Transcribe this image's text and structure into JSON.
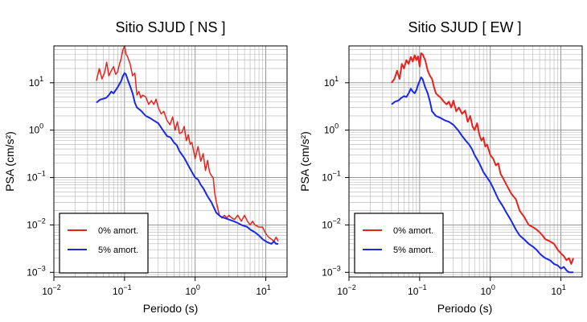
{
  "chart_data": [
    {
      "type": "line",
      "title": "Sitio SJUD [ NS ]",
      "xlabel": "Periodo (s)",
      "ylabel": "PSA (cm/s²)",
      "xscale": "log",
      "yscale": "log",
      "xlim": [
        0.01,
        20
      ],
      "ylim": [
        0.0008,
        60
      ],
      "grid": true,
      "legend_position": "bottom-left",
      "x_ticks": [
        {
          "base": "10",
          "exp": "−2",
          "value": 0.01
        },
        {
          "base": "10",
          "exp": "−1",
          "value": 0.1
        },
        {
          "base": "10",
          "exp": "0",
          "value": 1
        },
        {
          "base": "10",
          "exp": "1",
          "value": 10
        }
      ],
      "y_ticks": [
        {
          "base": "10",
          "exp": "−3",
          "value": 0.001
        },
        {
          "base": "10",
          "exp": "−2",
          "value": 0.01
        },
        {
          "base": "10",
          "exp": "−1",
          "value": 0.1
        },
        {
          "base": "10",
          "exp": "0",
          "value": 1
        },
        {
          "base": "10",
          "exp": "1",
          "value": 10
        }
      ],
      "series": [
        {
          "name": "0% amort.",
          "color": "#e8231f",
          "width": 1.5,
          "x": [
            0.04,
            0.044,
            0.048,
            0.052,
            0.056,
            0.06,
            0.065,
            0.07,
            0.075,
            0.08,
            0.085,
            0.09,
            0.095,
            0.1,
            0.105,
            0.11,
            0.12,
            0.13,
            0.14,
            0.15,
            0.16,
            0.17,
            0.18,
            0.2,
            0.22,
            0.24,
            0.26,
            0.28,
            0.3,
            0.33,
            0.36,
            0.4,
            0.44,
            0.48,
            0.52,
            0.56,
            0.6,
            0.65,
            0.7,
            0.75,
            0.8,
            0.85,
            0.9,
            1.0,
            1.1,
            1.2,
            1.3,
            1.4,
            1.5,
            1.6,
            1.7,
            1.8,
            1.9,
            2.0,
            2.2,
            2.4,
            2.6,
            2.8,
            3.0,
            3.3,
            3.6,
            4.0,
            4.5,
            5.0,
            5.5,
            6.0,
            6.5,
            7.0,
            8.0,
            9.0,
            10,
            11,
            12,
            13,
            14,
            15
          ],
          "y": [
            11,
            20,
            12,
            16,
            27,
            14,
            18,
            22,
            15,
            17,
            25,
            33,
            50,
            60,
            40,
            36,
            25,
            14,
            16,
            5.5,
            6.5,
            4.8,
            5.5,
            5.0,
            3.5,
            4.2,
            3.5,
            4.5,
            3.0,
            2.2,
            2.5,
            1.6,
            1.3,
            1.9,
            1.0,
            1.5,
            0.85,
            0.9,
            1.2,
            0.6,
            0.8,
            0.5,
            0.55,
            0.25,
            0.45,
            0.22,
            0.32,
            0.14,
            0.23,
            0.13,
            0.11,
            0.1,
            0.045,
            0.03,
            0.016,
            0.014,
            0.016,
            0.014,
            0.016,
            0.014,
            0.013,
            0.016,
            0.012,
            0.016,
            0.012,
            0.01,
            0.012,
            0.01,
            0.009,
            0.009,
            0.0065,
            0.0055,
            0.005,
            0.0045,
            0.0055,
            0.0045
          ]
        },
        {
          "name": "5% amort.",
          "color": "#1a28e8",
          "width": 2,
          "x": [
            0.04,
            0.045,
            0.05,
            0.055,
            0.06,
            0.065,
            0.07,
            0.075,
            0.08,
            0.085,
            0.09,
            0.095,
            0.1,
            0.105,
            0.11,
            0.12,
            0.13,
            0.14,
            0.15,
            0.17,
            0.2,
            0.23,
            0.26,
            0.3,
            0.35,
            0.4,
            0.45,
            0.5,
            0.55,
            0.6,
            0.7,
            0.8,
            0.9,
            1.0,
            1.1,
            1.2,
            1.3,
            1.5,
            1.7,
            2.0,
            2.3,
            2.6,
            3.0,
            3.5,
            4.0,
            4.5,
            5.0,
            5.5,
            6.0,
            7.0,
            8.0,
            9.0,
            10,
            11,
            12,
            13,
            14,
            15
          ],
          "y": [
            3.8,
            4.4,
            4.6,
            4.8,
            5.5,
            6.5,
            6.0,
            7.0,
            8.0,
            9.5,
            11,
            14,
            16,
            15,
            12,
            8.5,
            6.0,
            3.8,
            3.0,
            2.6,
            2.0,
            1.8,
            1.6,
            1.4,
            1.0,
            0.75,
            0.7,
            0.55,
            0.48,
            0.36,
            0.26,
            0.18,
            0.13,
            0.1,
            0.09,
            0.07,
            0.06,
            0.04,
            0.03,
            0.018,
            0.015,
            0.014,
            0.013,
            0.012,
            0.011,
            0.01,
            0.0095,
            0.009,
            0.008,
            0.007,
            0.006,
            0.005,
            0.0045,
            0.0042,
            0.004,
            0.0045,
            0.004,
            0.004
          ]
        }
      ]
    },
    {
      "type": "line",
      "title": "Sitio SJUD [ EW ]",
      "xlabel": "Periodo (s)",
      "ylabel": "PSA (cm/s²)",
      "xscale": "log",
      "yscale": "log",
      "xlim": [
        0.01,
        20
      ],
      "ylim": [
        0.0008,
        60
      ],
      "grid": true,
      "legend_position": "bottom-left",
      "x_ticks": [
        {
          "base": "10",
          "exp": "−2",
          "value": 0.01
        },
        {
          "base": "10",
          "exp": "−1",
          "value": 0.1
        },
        {
          "base": "10",
          "exp": "0",
          "value": 1
        },
        {
          "base": "10",
          "exp": "1",
          "value": 10
        }
      ],
      "y_ticks": [
        {
          "base": "10",
          "exp": "−3",
          "value": 0.001
        },
        {
          "base": "10",
          "exp": "−2",
          "value": 0.01
        },
        {
          "base": "10",
          "exp": "−1",
          "value": 0.1
        },
        {
          "base": "10",
          "exp": "0",
          "value": 1
        },
        {
          "base": "10",
          "exp": "1",
          "value": 10
        }
      ],
      "series": [
        {
          "name": "0% amort.",
          "color": "#e8231f",
          "width": 2,
          "x": [
            0.04,
            0.044,
            0.048,
            0.052,
            0.056,
            0.06,
            0.065,
            0.07,
            0.075,
            0.08,
            0.085,
            0.09,
            0.095,
            0.1,
            0.105,
            0.11,
            0.12,
            0.13,
            0.14,
            0.15,
            0.16,
            0.17,
            0.18,
            0.2,
            0.22,
            0.24,
            0.26,
            0.28,
            0.3,
            0.33,
            0.36,
            0.4,
            0.44,
            0.48,
            0.52,
            0.56,
            0.6,
            0.65,
            0.7,
            0.75,
            0.8,
            0.85,
            0.9,
            1.0,
            1.1,
            1.2,
            1.3,
            1.4,
            1.5,
            1.7,
            2.0,
            2.3,
            2.6,
            3.0,
            3.5,
            4.0,
            4.5,
            5.0,
            5.5,
            6.0,
            7.0,
            8.0,
            9.0,
            10,
            11,
            12,
            13,
            14,
            15
          ],
          "y": [
            10,
            12,
            18,
            12,
            25,
            20,
            30,
            25,
            35,
            28,
            38,
            30,
            36,
            22,
            42,
            40,
            30,
            18,
            14,
            12,
            8,
            6,
            5.5,
            4.8,
            4.0,
            3.5,
            4.0,
            3.0,
            4.2,
            2.5,
            3.0,
            2.2,
            2.6,
            1.5,
            2.0,
            1.2,
            1.0,
            1.4,
            0.8,
            0.6,
            0.7,
            0.45,
            0.5,
            0.3,
            0.25,
            0.18,
            0.2,
            0.12,
            0.1,
            0.07,
            0.045,
            0.035,
            0.02,
            0.015,
            0.01,
            0.009,
            0.008,
            0.007,
            0.006,
            0.005,
            0.0045,
            0.004,
            0.003,
            0.0025,
            0.0022,
            0.0018,
            0.002,
            0.0015,
            0.002
          ]
        },
        {
          "name": "5% amort.",
          "color": "#1a28e8",
          "width": 2,
          "x": [
            0.04,
            0.045,
            0.05,
            0.055,
            0.06,
            0.065,
            0.07,
            0.075,
            0.08,
            0.085,
            0.09,
            0.095,
            0.1,
            0.105,
            0.11,
            0.12,
            0.13,
            0.14,
            0.15,
            0.17,
            0.2,
            0.23,
            0.26,
            0.3,
            0.35,
            0.4,
            0.45,
            0.5,
            0.55,
            0.6,
            0.7,
            0.8,
            0.9,
            1.0,
            1.1,
            1.2,
            1.3,
            1.5,
            1.7,
            2.0,
            2.3,
            2.6,
            3.0,
            3.5,
            4.0,
            4.5,
            5.0,
            5.5,
            6.0,
            7.0,
            8.0,
            9.0,
            10,
            11,
            12,
            13,
            14,
            15
          ],
          "y": [
            3.5,
            4.0,
            4.2,
            4.8,
            5.2,
            5.0,
            6.0,
            7.5,
            6.5,
            6.0,
            7.0,
            9.0,
            11,
            13,
            12,
            8.0,
            6.0,
            4.0,
            2.5,
            2.0,
            1.8,
            1.6,
            1.5,
            1.3,
            1.0,
            0.75,
            0.6,
            0.5,
            0.4,
            0.3,
            0.2,
            0.13,
            0.1,
            0.08,
            0.06,
            0.045,
            0.035,
            0.025,
            0.018,
            0.012,
            0.008,
            0.006,
            0.005,
            0.004,
            0.0035,
            0.003,
            0.0025,
            0.0022,
            0.002,
            0.0018,
            0.0015,
            0.0014,
            0.0012,
            0.0013,
            0.0011,
            0.001,
            0.001,
            0.001
          ]
        }
      ]
    }
  ]
}
